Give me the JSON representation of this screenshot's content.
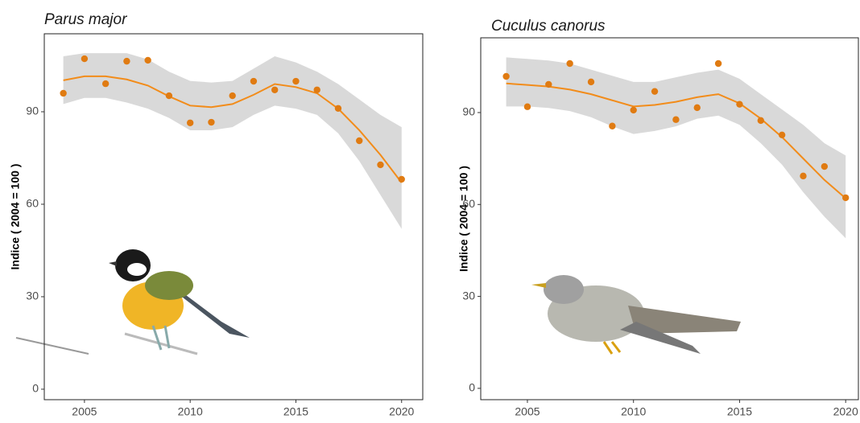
{
  "chart_data": [
    {
      "type": "scatter",
      "title": "Parus major",
      "y_label": "Indice ( 2004 = 100 )",
      "x": [
        2004,
        2005,
        2006,
        2007,
        2008,
        2009,
        2010,
        2011,
        2012,
        2013,
        2014,
        2015,
        2016,
        2017,
        2018,
        2019,
        2020
      ],
      "points": [
        96.0,
        107.2,
        99.1,
        106.4,
        106.7,
        95.2,
        86.4,
        86.6,
        95.2,
        99.9,
        97.1,
        99.9,
        97.1,
        91.1,
        80.6,
        72.8,
        68.1
      ],
      "trend": [
        100.2,
        101.5,
        101.5,
        100.5,
        98.5,
        95,
        92,
        91.5,
        92.5,
        95.5,
        99,
        98,
        96,
        91,
        84,
        76,
        67
      ],
      "band_low": [
        92.5,
        94.5,
        94.5,
        93,
        91,
        88,
        84,
        84,
        85,
        89,
        92,
        91,
        89,
        83,
        74,
        63,
        52
      ],
      "band_high": [
        108,
        109,
        109,
        109,
        107,
        103,
        100,
        99.5,
        100,
        104,
        108,
        106,
        103,
        99,
        94,
        89,
        85
      ],
      "point_color": "#e07b12",
      "trend_color": "#f28c1a",
      "band_color": "#d9d9d9",
      "xlim": [
        2003.1,
        2021.0
      ],
      "ylim": [
        -3.4,
        115.3
      ],
      "xticks": [
        2005,
        2010,
        2015,
        2020
      ],
      "yticks": [
        0,
        30,
        60,
        90
      ]
    },
    {
      "type": "scatter",
      "title": "Cuculus canorus",
      "y_label": "Indice ( 2004 = 100 )",
      "x": [
        2004,
        2005,
        2006,
        2007,
        2008,
        2009,
        2010,
        2011,
        2012,
        2013,
        2014,
        2015,
        2016,
        2017,
        2018,
        2019,
        2020
      ],
      "points": [
        101.8,
        91.9,
        99.2,
        106.0,
        100.0,
        85.6,
        90.8,
        96.9,
        87.7,
        91.6,
        106.0,
        92.7,
        87.4,
        82.7,
        69.3,
        72.4,
        62.2
      ],
      "trend": [
        99.5,
        99,
        98.5,
        97.5,
        96,
        94,
        92,
        92.5,
        93.5,
        95,
        96,
        93,
        88,
        82,
        75,
        68,
        62
      ],
      "band_low": [
        92,
        92,
        91.5,
        90.5,
        88.5,
        85.5,
        83,
        84,
        85.5,
        88,
        89,
        86,
        80,
        73,
        64,
        56,
        49
      ],
      "band_high": [
        108,
        107.5,
        107,
        106,
        104,
        102,
        100,
        100,
        101.5,
        103,
        104,
        101,
        96,
        91,
        86,
        80,
        76
      ],
      "point_color": "#e07b12",
      "trend_color": "#f28c1a",
      "band_color": "#d9d9d9",
      "xlim": [
        2002.8,
        2020.6
      ],
      "ylim": [
        -3.7,
        114.4
      ],
      "xticks": [
        2005,
        2010,
        2015,
        2020
      ],
      "yticks": [
        0,
        30,
        60,
        90
      ]
    }
  ]
}
